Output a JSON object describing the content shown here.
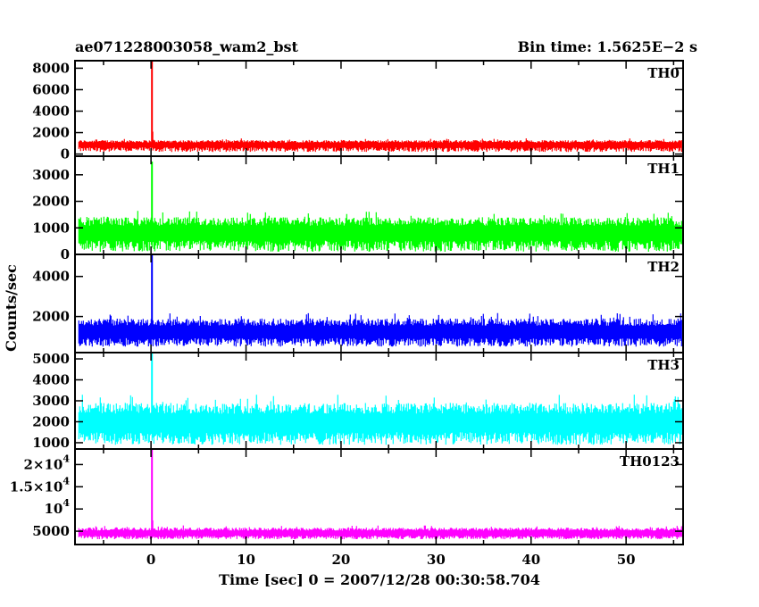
{
  "chart_data": {
    "type": "line",
    "title_left": "ae071228003058_wam2_bst",
    "title_right": "Bin time: 1.5625E−2 s",
    "xlabel": "Time [sec] 0 = 2007/12/28 00:30:58.704",
    "ylabel": "Counts/sec",
    "xlim": [
      -8,
      56
    ],
    "x_ticks": [
      "0",
      "10",
      "20",
      "30",
      "40",
      "50"
    ],
    "x_data_start": -7.6,
    "x_data_end": 55.9,
    "panels": [
      {
        "name": "TH0",
        "color": "#ff0000",
        "ylim": [
          -200,
          8700
        ],
        "y_ticks": [
          {
            "label": "0",
            "value": 0
          },
          {
            "label": "2000",
            "value": 2000
          },
          {
            "label": "4000",
            "value": 4000
          },
          {
            "label": "6000",
            "value": 6000
          },
          {
            "label": "8000",
            "value": 8000
          }
        ],
        "baseline": 800,
        "band_low": 200,
        "band_high": 1300,
        "peak_time": 0.1,
        "peak_value": 8700
      },
      {
        "name": "TH1",
        "color": "#00ff00",
        "ylim": [
          0,
          3700
        ],
        "y_ticks": [
          {
            "label": "0",
            "value": 0
          },
          {
            "label": "1000",
            "value": 1000
          },
          {
            "label": "2000",
            "value": 2000
          },
          {
            "label": "3000",
            "value": 3000
          }
        ],
        "baseline": 700,
        "band_low": 100,
        "band_high": 1400,
        "peak_time": 0.1,
        "peak_value": 3500
      },
      {
        "name": "TH2",
        "color": "#0000ff",
        "ylim": [
          200,
          5100
        ],
        "y_ticks": [
          {
            "label": "2000",
            "value": 2000
          },
          {
            "label": "4000",
            "value": 4000
          }
        ],
        "baseline": 1100,
        "band_low": 500,
        "band_high": 1900,
        "peak_time": 0.1,
        "peak_value": 5100
      },
      {
        "name": "TH3",
        "color": "#00ffff",
        "ylim": [
          700,
          5300
        ],
        "y_ticks": [
          {
            "label": "1000",
            "value": 1000
          },
          {
            "label": "2000",
            "value": 2000
          },
          {
            "label": "3000",
            "value": 3000
          },
          {
            "label": "4000",
            "value": 4000
          },
          {
            "label": "5000",
            "value": 5000
          }
        ],
        "baseline": 1750,
        "band_low": 900,
        "band_high": 2900,
        "peak_time": 0.1,
        "peak_value": 5300
      },
      {
        "name": "TH0123",
        "color": "#ff00ff",
        "ylim": [
          2000,
          23500
        ],
        "y_ticks": [
          {
            "label": "5000",
            "value": 5000,
            "mant": "",
            "exp": ""
          },
          {
            "label": "10",
            "value": 10000,
            "mant": "",
            "exp": "4"
          },
          {
            "label": "1.5×10",
            "value": 15000,
            "mant": "1.5×",
            "exp": "4"
          },
          {
            "label": "2×10",
            "value": 20000,
            "mant": "2×",
            "exp": "4"
          }
        ],
        "baseline": 4300,
        "band_low": 3200,
        "band_high": 5800,
        "peak_time": 0.1,
        "peak_value": 23500
      }
    ]
  }
}
